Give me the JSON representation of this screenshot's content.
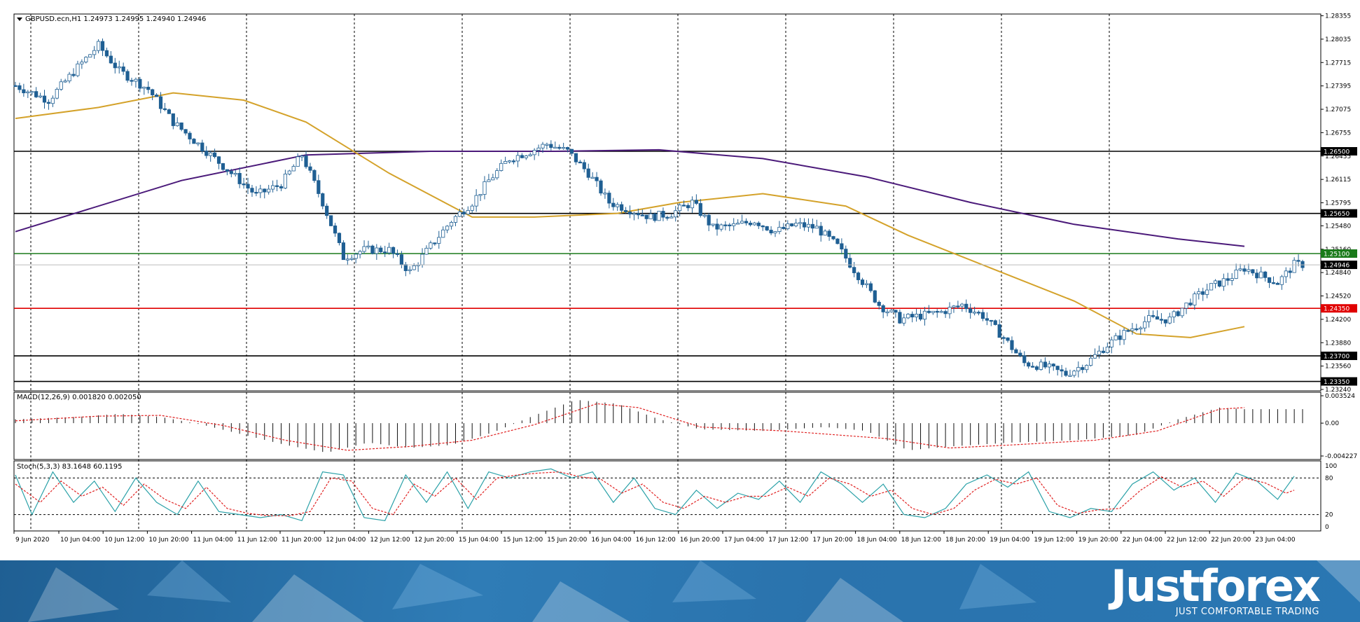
{
  "chart_data": {
    "type": "candlestick",
    "symbol_header": "GBPUSD.ecn,H1  1.24973 1.24995 1.24940 1.24946",
    "current_price_label": "1.24946",
    "price_axis_labels": [
      "1.28355",
      "1.28035",
      "1.27715",
      "1.27395",
      "1.27075",
      "1.26755",
      "1.26435",
      "1.26115",
      "1.25795",
      "1.25480",
      "1.25160",
      "1.24840",
      "1.24520",
      "1.24200",
      "1.23880",
      "1.23560",
      "1.23240"
    ],
    "ylim": [
      1.2324,
      1.2836
    ],
    "levels": [
      {
        "label": "1.26500",
        "value": 1.265,
        "color": "#000000"
      },
      {
        "label": "1.25650",
        "value": 1.2565,
        "color": "#000000"
      },
      {
        "label": "1.25100",
        "value": 1.251,
        "color": "#1a7a1a"
      },
      {
        "label": "1.24350",
        "value": 1.2435,
        "color": "#e00000"
      },
      {
        "label": "1.23700",
        "value": 1.237,
        "color": "#000000"
      },
      {
        "label": "1.23350",
        "value": 1.2335,
        "color": "#000000"
      }
    ],
    "time_labels": [
      "9 Jun 2020",
      "10 Jun 04:00",
      "10 Jun 12:00",
      "10 Jun 20:00",
      "11 Jun 04:00",
      "11 Jun 12:00",
      "11 Jun 20:00",
      "12 Jun 04:00",
      "12 Jun 12:00",
      "12 Jun 20:00",
      "15 Jun 04:00",
      "15 Jun 12:00",
      "15 Jun 20:00",
      "16 Jun 04:00",
      "16 Jun 12:00",
      "16 Jun 20:00",
      "17 Jun 04:00",
      "17 Jun 12:00",
      "17 Jun 20:00",
      "18 Jun 04:00",
      "18 Jun 12:00",
      "18 Jun 20:00",
      "19 Jun 04:00",
      "19 Jun 12:00",
      "19 Jun 20:00",
      "22 Jun 04:00",
      "22 Jun 12:00",
      "22 Jun 20:00",
      "23 Jun 04:00"
    ],
    "price_path": [
      [
        0,
        1.274
      ],
      [
        8,
        1.272
      ],
      [
        15,
        1.2765
      ],
      [
        20,
        1.2795
      ],
      [
        25,
        1.276
      ],
      [
        32,
        1.2735
      ],
      [
        38,
        1.269
      ],
      [
        45,
        1.2655
      ],
      [
        52,
        1.262
      ],
      [
        58,
        1.259
      ],
      [
        64,
        1.2605
      ],
      [
        69,
        1.2645
      ],
      [
        74,
        1.258
      ],
      [
        79,
        1.2505
      ],
      [
        84,
        1.2515
      ],
      [
        90,
        1.2515
      ],
      [
        95,
        1.2485
      ],
      [
        100,
        1.252
      ],
      [
        105,
        1.2555
      ],
      [
        110,
        1.258
      ],
      [
        114,
        1.261
      ],
      [
        119,
        1.264
      ],
      [
        124,
        1.265
      ],
      [
        128,
        1.266
      ],
      [
        133,
        1.265
      ],
      [
        138,
        1.262
      ],
      [
        143,
        1.258
      ],
      [
        148,
        1.257
      ],
      [
        153,
        1.256
      ],
      [
        158,
        1.2565
      ],
      [
        163,
        1.258
      ],
      [
        168,
        1.2545
      ],
      [
        173,
        1.2548
      ],
      [
        178,
        1.2555
      ],
      [
        183,
        1.254
      ],
      [
        188,
        1.255
      ],
      [
        193,
        1.2545
      ],
      [
        198,
        1.252
      ],
      [
        203,
        1.248
      ],
      [
        208,
        1.244
      ],
      [
        213,
        1.242
      ],
      [
        218,
        1.2425
      ],
      [
        223,
        1.243
      ],
      [
        228,
        1.244
      ],
      [
        233,
        1.2425
      ],
      [
        238,
        1.2395
      ],
      [
        243,
        1.236
      ],
      [
        248,
        1.2355
      ],
      [
        253,
        1.2345
      ],
      [
        258,
        1.236
      ],
      [
        263,
        1.2385
      ],
      [
        268,
        1.2405
      ],
      [
        273,
        1.242
      ],
      [
        278,
        1.242
      ],
      [
        283,
        1.2445
      ],
      [
        288,
        1.2465
      ],
      [
        292,
        1.2475
      ],
      [
        296,
        1.249
      ],
      [
        300,
        1.248
      ],
      [
        304,
        1.247
      ],
      [
        308,
        1.2495
      ]
    ],
    "ma_slow_path": [
      [
        0,
        1.254
      ],
      [
        40,
        1.261
      ],
      [
        70,
        1.2645
      ],
      [
        100,
        1.265
      ],
      [
        130,
        1.265
      ],
      [
        155,
        1.2652
      ],
      [
        180,
        1.264
      ],
      [
        205,
        1.2615
      ],
      [
        230,
        1.258
      ],
      [
        255,
        1.255
      ],
      [
        280,
        1.253
      ],
      [
        296,
        1.252
      ]
    ],
    "ma_fast_path": [
      [
        0,
        1.2695
      ],
      [
        20,
        1.271
      ],
      [
        38,
        1.273
      ],
      [
        55,
        1.272
      ],
      [
        70,
        1.269
      ],
      [
        90,
        1.262
      ],
      [
        110,
        1.256
      ],
      [
        125,
        1.256
      ],
      [
        145,
        1.2565
      ],
      [
        160,
        1.258
      ],
      [
        180,
        1.2592
      ],
      [
        200,
        1.2575
      ],
      [
        215,
        1.2535
      ],
      [
        235,
        1.249
      ],
      [
        255,
        1.2445
      ],
      [
        270,
        1.24
      ],
      [
        283,
        1.2395
      ],
      [
        296,
        1.241
      ]
    ],
    "macd_header": "MACD(12,26,9) 0.001820 0.002050",
    "macd_axis_labels": [
      "0.003524",
      "0.00",
      "-0.004227"
    ],
    "macd_ylim": [
      -0.004227,
      0.003524
    ],
    "macd_path": [
      [
        0,
        0.0005
      ],
      [
        15,
        0.0008
      ],
      [
        25,
        0.0012
      ],
      [
        35,
        0.0008
      ],
      [
        45,
        -0.0002
      ],
      [
        55,
        -0.0015
      ],
      [
        65,
        -0.0028
      ],
      [
        75,
        -0.0038
      ],
      [
        85,
        -0.0025
      ],
      [
        95,
        -0.0032
      ],
      [
        105,
        -0.0028
      ],
      [
        115,
        -0.0012
      ],
      [
        125,
        0.001
      ],
      [
        135,
        0.003
      ],
      [
        145,
        0.0025
      ],
      [
        155,
        0.0005
      ],
      [
        165,
        -0.0008
      ],
      [
        180,
        -0.001
      ],
      [
        195,
        -0.0005
      ],
      [
        205,
        -0.001
      ],
      [
        215,
        -0.0035
      ],
      [
        225,
        -0.003
      ],
      [
        240,
        -0.0025
      ],
      [
        255,
        -0.0022
      ],
      [
        270,
        -0.0015
      ],
      [
        280,
        0.0005
      ],
      [
        290,
        0.002
      ],
      [
        296,
        0.0018
      ]
    ],
    "macd_signal_path": [
      [
        0,
        0.0003
      ],
      [
        20,
        0.0009
      ],
      [
        35,
        0.001
      ],
      [
        50,
        -0.0003
      ],
      [
        65,
        -0.0022
      ],
      [
        80,
        -0.0035
      ],
      [
        95,
        -0.003
      ],
      [
        110,
        -0.0022
      ],
      [
        125,
        -0.0002
      ],
      [
        140,
        0.0025
      ],
      [
        150,
        0.002
      ],
      [
        165,
        -0.0005
      ],
      [
        185,
        -0.001
      ],
      [
        210,
        -0.002
      ],
      [
        225,
        -0.0032
      ],
      [
        240,
        -0.0028
      ],
      [
        260,
        -0.0022
      ],
      [
        275,
        -0.001
      ],
      [
        290,
        0.0018
      ],
      [
        296,
        0.002
      ]
    ],
    "stoch_header": "Stoch(5,3,3) 83.1648 60.1195",
    "stoch_axis_labels": [
      "100",
      "80",
      "20",
      "0"
    ],
    "stoch_levels": [
      80,
      20
    ],
    "stoch_main_path": [
      [
        0,
        85
      ],
      [
        4,
        20
      ],
      [
        9,
        90
      ],
      [
        14,
        40
      ],
      [
        19,
        75
      ],
      [
        24,
        25
      ],
      [
        29,
        80
      ],
      [
        34,
        40
      ],
      [
        39,
        20
      ],
      [
        44,
        75
      ],
      [
        49,
        25
      ],
      [
        54,
        20
      ],
      [
        59,
        15
      ],
      [
        64,
        20
      ],
      [
        69,
        10
      ],
      [
        74,
        90
      ],
      [
        79,
        85
      ],
      [
        84,
        15
      ],
      [
        89,
        10
      ],
      [
        94,
        85
      ],
      [
        99,
        40
      ],
      [
        104,
        90
      ],
      [
        109,
        30
      ],
      [
        114,
        90
      ],
      [
        119,
        80
      ],
      [
        124,
        90
      ],
      [
        129,
        95
      ],
      [
        134,
        80
      ],
      [
        139,
        90
      ],
      [
        144,
        40
      ],
      [
        149,
        80
      ],
      [
        154,
        30
      ],
      [
        159,
        20
      ],
      [
        164,
        60
      ],
      [
        169,
        30
      ],
      [
        174,
        55
      ],
      [
        179,
        45
      ],
      [
        184,
        75
      ],
      [
        189,
        40
      ],
      [
        194,
        90
      ],
      [
        199,
        70
      ],
      [
        204,
        40
      ],
      [
        209,
        70
      ],
      [
        214,
        20
      ],
      [
        219,
        15
      ],
      [
        224,
        30
      ],
      [
        229,
        70
      ],
      [
        234,
        85
      ],
      [
        239,
        65
      ],
      [
        244,
        90
      ],
      [
        249,
        25
      ],
      [
        254,
        15
      ],
      [
        259,
        30
      ],
      [
        264,
        25
      ],
      [
        269,
        70
      ],
      [
        274,
        90
      ],
      [
        279,
        60
      ],
      [
        284,
        80
      ],
      [
        289,
        40
      ],
      [
        294,
        88
      ],
      [
        299,
        75
      ],
      [
        304,
        45
      ],
      [
        308,
        83
      ]
    ],
    "stoch_signal_path": [
      [
        0,
        70
      ],
      [
        6,
        40
      ],
      [
        11,
        75
      ],
      [
        16,
        50
      ],
      [
        21,
        65
      ],
      [
        26,
        35
      ],
      [
        31,
        70
      ],
      [
        36,
        45
      ],
      [
        41,
        30
      ],
      [
        46,
        65
      ],
      [
        51,
        30
      ],
      [
        56,
        22
      ],
      [
        61,
        18
      ],
      [
        66,
        18
      ],
      [
        71,
        25
      ],
      [
        76,
        80
      ],
      [
        81,
        75
      ],
      [
        86,
        30
      ],
      [
        91,
        20
      ],
      [
        96,
        70
      ],
      [
        101,
        50
      ],
      [
        106,
        80
      ],
      [
        111,
        45
      ],
      [
        116,
        80
      ],
      [
        121,
        85
      ],
      [
        126,
        88
      ],
      [
        131,
        90
      ],
      [
        136,
        82
      ],
      [
        141,
        78
      ],
      [
        146,
        55
      ],
      [
        151,
        70
      ],
      [
        156,
        40
      ],
      [
        161,
        30
      ],
      [
        166,
        50
      ],
      [
        171,
        40
      ],
      [
        176,
        50
      ],
      [
        181,
        50
      ],
      [
        186,
        65
      ],
      [
        191,
        50
      ],
      [
        196,
        80
      ],
      [
        201,
        70
      ],
      [
        206,
        50
      ],
      [
        211,
        60
      ],
      [
        216,
        30
      ],
      [
        221,
        20
      ],
      [
        226,
        30
      ],
      [
        231,
        60
      ],
      [
        236,
        78
      ],
      [
        241,
        70
      ],
      [
        246,
        80
      ],
      [
        251,
        35
      ],
      [
        256,
        22
      ],
      [
        261,
        28
      ],
      [
        266,
        30
      ],
      [
        271,
        60
      ],
      [
        276,
        82
      ],
      [
        281,
        65
      ],
      [
        286,
        75
      ],
      [
        291,
        50
      ],
      [
        296,
        80
      ],
      [
        301,
        72
      ],
      [
        306,
        55
      ],
      [
        308,
        60
      ]
    ]
  },
  "branding": {
    "name": "Justforex",
    "slogan": "JUST COMFORTABLE TRADING"
  }
}
